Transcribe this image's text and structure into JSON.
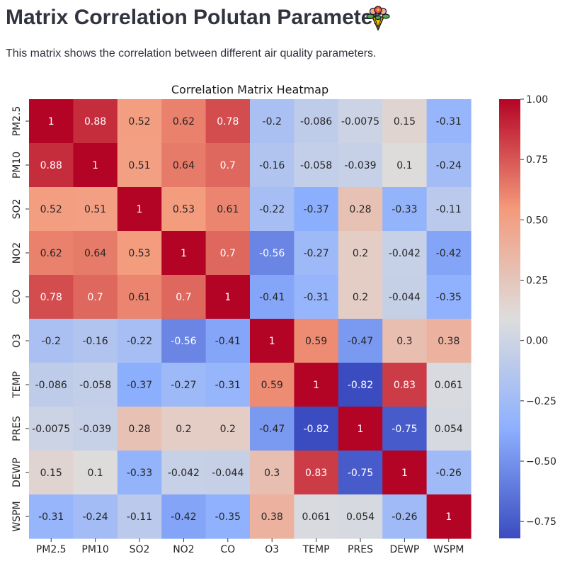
{
  "page": {
    "title": "Matrix Correlation Polutan Parameter",
    "title_icon": "flower-bouquet-icon",
    "description": "This matrix shows the correlation between different air quality parameters."
  },
  "chart_data": {
    "type": "heatmap",
    "title": "Correlation Matrix Heatmap",
    "xlabel": "",
    "ylabel": "",
    "colormap": "coolwarm",
    "vmin": -0.82,
    "vmax": 1.0,
    "annotate": true,
    "grid": false,
    "colorbar_position": "right",
    "colorbar_ticks": [
      "1.00",
      "0.75",
      "0.50",
      "0.25",
      "0.00",
      "−0.25",
      "−0.50",
      "−0.75"
    ],
    "colorbar_tick_values": [
      1.0,
      0.75,
      0.5,
      0.25,
      0.0,
      -0.25,
      -0.5,
      -0.75
    ],
    "x_categories": [
      "PM2.5",
      "PM10",
      "SO2",
      "NO2",
      "CO",
      "O3",
      "TEMP",
      "PRES",
      "DEWP",
      "WSPM"
    ],
    "y_categories": [
      "PM2.5",
      "PM10",
      "SO2",
      "NO2",
      "CO",
      "O3",
      "TEMP",
      "PRES",
      "DEWP",
      "WSPM"
    ],
    "values": [
      [
        1,
        0.88,
        0.52,
        0.62,
        0.78,
        -0.2,
        -0.086,
        -0.0075,
        0.15,
        -0.31
      ],
      [
        0.88,
        1,
        0.51,
        0.64,
        0.7,
        -0.16,
        -0.058,
        -0.039,
        0.1,
        -0.24
      ],
      [
        0.52,
        0.51,
        1,
        0.53,
        0.61,
        -0.22,
        -0.37,
        0.28,
        -0.33,
        -0.11
      ],
      [
        0.62,
        0.64,
        0.53,
        1,
        0.7,
        -0.56,
        -0.27,
        0.2,
        -0.042,
        -0.42
      ],
      [
        0.78,
        0.7,
        0.61,
        0.7,
        1,
        -0.41,
        -0.31,
        0.2,
        -0.044,
        -0.35
      ],
      [
        -0.2,
        -0.16,
        -0.22,
        -0.56,
        -0.41,
        1,
        0.59,
        -0.47,
        0.3,
        0.38
      ],
      [
        -0.086,
        -0.058,
        -0.37,
        -0.27,
        -0.31,
        0.59,
        1,
        -0.82,
        0.83,
        0.061
      ],
      [
        -0.0075,
        -0.039,
        0.28,
        0.2,
        0.2,
        -0.47,
        -0.82,
        1,
        -0.75,
        0.054
      ],
      [
        0.15,
        0.1,
        -0.33,
        -0.042,
        -0.044,
        0.3,
        0.83,
        -0.75,
        1,
        -0.26
      ],
      [
        -0.31,
        -0.24,
        -0.11,
        -0.42,
        -0.35,
        0.38,
        0.061,
        0.054,
        -0.26,
        1
      ]
    ],
    "labels": [
      [
        "1",
        "0.88",
        "0.52",
        "0.62",
        "0.78",
        "-0.2",
        "-0.086",
        "-0.0075",
        "0.15",
        "-0.31"
      ],
      [
        "0.88",
        "1",
        "0.51",
        "0.64",
        "0.7",
        "-0.16",
        "-0.058",
        "-0.039",
        "0.1",
        "-0.24"
      ],
      [
        "0.52",
        "0.51",
        "1",
        "0.53",
        "0.61",
        "-0.22",
        "-0.37",
        "0.28",
        "-0.33",
        "-0.11"
      ],
      [
        "0.62",
        "0.64",
        "0.53",
        "1",
        "0.7",
        "-0.56",
        "-0.27",
        "0.2",
        "-0.042",
        "-0.42"
      ],
      [
        "0.78",
        "0.7",
        "0.61",
        "0.7",
        "1",
        "-0.41",
        "-0.31",
        "0.2",
        "-0.044",
        "-0.35"
      ],
      [
        "-0.2",
        "-0.16",
        "-0.22",
        "-0.56",
        "-0.41",
        "1",
        "0.59",
        "-0.47",
        "0.3",
        "0.38"
      ],
      [
        "-0.086",
        "-0.058",
        "-0.37",
        "-0.27",
        "-0.31",
        "0.59",
        "1",
        "-0.82",
        "0.83",
        "0.061"
      ],
      [
        "-0.0075",
        "-0.039",
        "0.28",
        "0.2",
        "0.2",
        "-0.47",
        "-0.82",
        "1",
        "-0.75",
        "0.054"
      ],
      [
        "0.15",
        "0.1",
        "-0.33",
        "-0.042",
        "-0.044",
        "0.3",
        "0.83",
        "-0.75",
        "1",
        "-0.26"
      ],
      [
        "-0.31",
        "-0.24",
        "-0.11",
        "-0.42",
        "-0.35",
        "0.38",
        "0.061",
        "0.054",
        "-0.26",
        "1"
      ]
    ]
  }
}
